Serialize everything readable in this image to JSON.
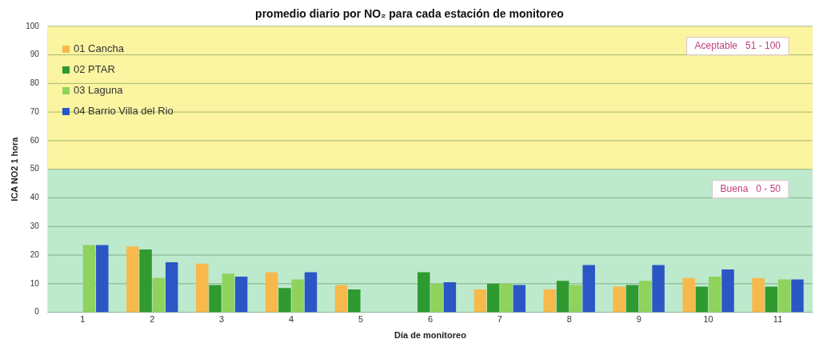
{
  "chart_data": {
    "type": "bar",
    "title": "promedio diario por NO₂ para cada estación de monitoreo",
    "xlabel": "Día de monitoreo",
    "ylabel": "ICA NO2 1 hora",
    "categories": [
      "1",
      "2",
      "3",
      "4",
      "5",
      "6",
      "7",
      "8",
      "9",
      "10",
      "11"
    ],
    "series": [
      {
        "name": "01 Cancha",
        "color": "#f7b94c",
        "values": [
          null,
          23,
          17,
          14,
          9.5,
          null,
          8,
          8,
          9,
          12,
          12
        ]
      },
      {
        "name": "02 PTAR",
        "color": "#2f9a2f",
        "values": [
          null,
          22,
          9.5,
          8.5,
          8,
          14,
          10,
          11,
          9.5,
          9,
          9
        ]
      },
      {
        "name": "03 Laguna",
        "color": "#8fd35c",
        "values": [
          23.5,
          12,
          13.5,
          11.5,
          null,
          10,
          10,
          9.5,
          11,
          12.5,
          11.5
        ]
      },
      {
        "name": "04 Barrio Villa del Rio",
        "color": "#2b56c6",
        "values": [
          23.5,
          17.5,
          12.5,
          14,
          null,
          10.5,
          9.5,
          16.5,
          16.5,
          15,
          11.5
        ]
      }
    ],
    "ylim": [
      0,
      100
    ],
    "yticks": [
      0,
      10,
      20,
      30,
      40,
      50,
      60,
      70,
      80,
      90,
      100
    ],
    "bands": [
      {
        "axis": "y",
        "from": 0,
        "to": 50,
        "label": "Buena   0 - 50",
        "color": "#bde9cc"
      },
      {
        "axis": "y",
        "from": 50,
        "to": 100,
        "label": "Aceptable   51 - 100",
        "color": "#fbf4a0"
      }
    ],
    "grid": "y",
    "legend": "top left"
  }
}
